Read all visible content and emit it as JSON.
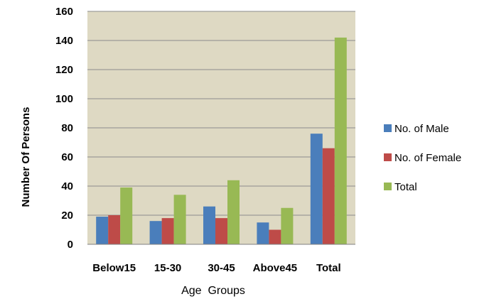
{
  "chart_data": {
    "type": "bar",
    "title": "",
    "xlabel": "Age  Groups",
    "ylabel": "Number Of Persons",
    "categories": [
      "Below15",
      "15-30",
      "30-45",
      "Above45",
      "Total"
    ],
    "series": [
      {
        "name": "No. of Male",
        "color": "#4a7ebb",
        "values": [
          19,
          16,
          26,
          15,
          76
        ]
      },
      {
        "name": "No. of Female",
        "color": "#be4b48",
        "values": [
          20,
          18,
          18,
          10,
          66
        ]
      },
      {
        "name": "Total",
        "color": "#98b954",
        "values": [
          39,
          34,
          44,
          25,
          142
        ]
      }
    ],
    "ylim": [
      0,
      160
    ],
    "yticks": [
      0,
      20,
      40,
      60,
      80,
      100,
      120,
      140,
      160
    ],
    "grid": true,
    "plot_background": "#ded9c3",
    "legend_position": "right"
  }
}
